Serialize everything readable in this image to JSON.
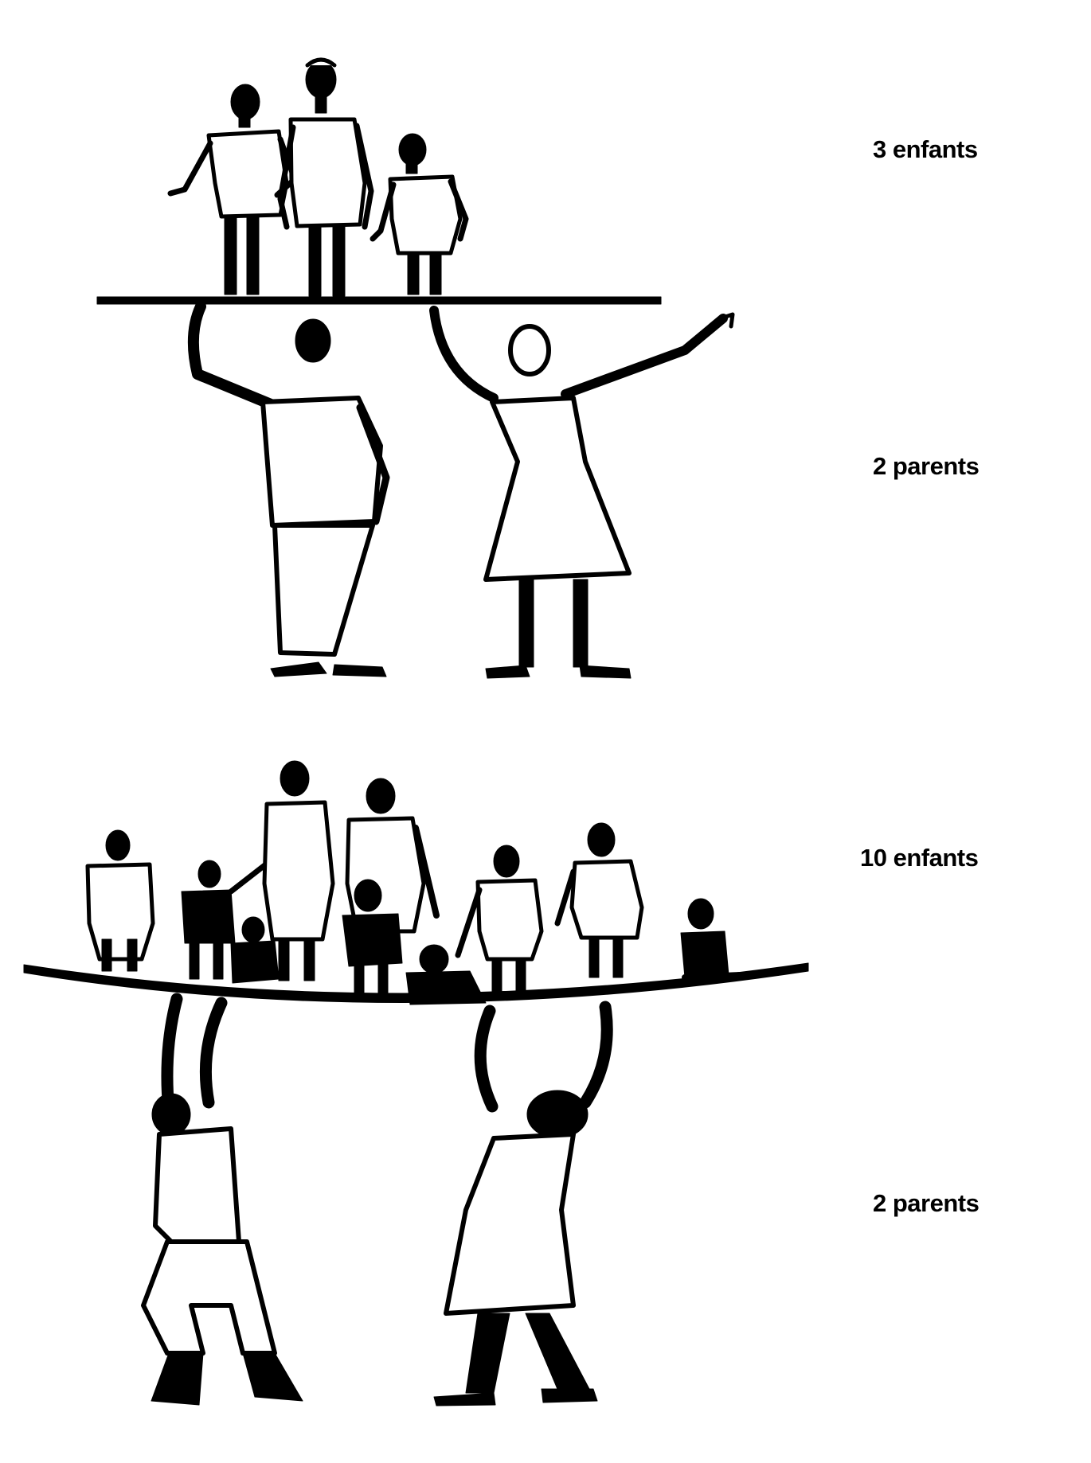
{
  "top_scene": {
    "children_label": "3 enfants",
    "parents_label": "2 parents",
    "children_count": 3,
    "parents_count": 2
  },
  "bottom_scene": {
    "children_label": "10 enfants",
    "parents_label": "2 parents",
    "children_count": 10,
    "parents_count": 2
  },
  "colors": {
    "ink": "#000000",
    "paper": "#ffffff"
  }
}
